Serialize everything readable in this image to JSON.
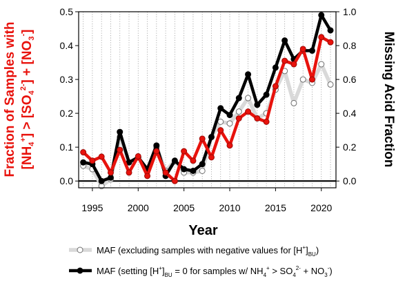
{
  "chart_data": {
    "type": "line",
    "x": [
      1994,
      1995,
      1996,
      1997,
      1998,
      1999,
      2000,
      2001,
      2002,
      2003,
      2004,
      2005,
      2006,
      2007,
      2008,
      2009,
      2010,
      2011,
      2012,
      2013,
      2014,
      2015,
      2016,
      2017,
      2018,
      2019,
      2020,
      2021
    ],
    "xlabel": "Year",
    "xticks": [
      1995,
      2000,
      2005,
      2010,
      2015,
      2020
    ],
    "xlim": [
      1993.5,
      2021.6
    ],
    "ylabel_left_parts": [
      "Fraction of Samples with",
      "[NH",
      "4",
      "+",
      "] > [SO",
      "4",
      "2-",
      "] + [NO",
      "3",
      "-",
      "]"
    ],
    "ylim_left": [
      -0.02,
      0.5
    ],
    "yticks_left": [
      "0.0",
      "0.1",
      "0.2",
      "0.3",
      "0.4",
      "0.5"
    ],
    "ylabel_right": "Missing Acid Fraction",
    "ylim_right": [
      -0.04,
      1.0
    ],
    "yticks_right": [
      "0.0",
      "0.2",
      "0.4",
      "0.6",
      "0.8",
      "1.0"
    ],
    "grid": "vertical dotted",
    "legend_position": "bottom",
    "series": [
      {
        "axis": "right",
        "color": "#d9d9d9",
        "marker": "open-circle",
        "values": [
          0.09,
          0.07,
          -0.03,
          0.01,
          0.26,
          0.11,
          0.14,
          0.06,
          0.2,
          0.06,
          0.12,
          0.05,
          0.05,
          0.06,
          0.26,
          0.35,
          0.34,
          0.41,
          0.49,
          0.37,
          0.4,
          0.54,
          0.65,
          0.46,
          0.6,
          0.58,
          0.69,
          0.57
        ],
        "legend_parts": [
          "MAF (excluding samples with negative values for [H",
          "+",
          "]",
          "BU",
          ")"
        ]
      },
      {
        "axis": "right",
        "color": "#000000",
        "marker": "filled-circle",
        "values": [
          0.11,
          0.1,
          0.0,
          0.02,
          0.29,
          0.11,
          0.14,
          0.07,
          0.21,
          0.03,
          0.12,
          0.07,
          0.06,
          0.1,
          0.26,
          0.43,
          0.39,
          0.49,
          0.63,
          0.45,
          0.51,
          0.67,
          0.83,
          0.72,
          0.77,
          0.77,
          0.98,
          0.89
        ],
        "legend_parts": [
          "MAF (setting [H",
          "+",
          "]",
          "BU",
          " =  0 for samples w/ NH",
          "4",
          "+",
          " > SO",
          "4",
          "2-",
          " + NO",
          "3",
          "-",
          ")"
        ]
      },
      {
        "axis": "left",
        "color": "#e8120c",
        "marker": "filled-circle",
        "values": [
          0.085,
          0.06,
          0.072,
          0.025,
          0.092,
          0.025,
          0.073,
          0.015,
          0.088,
          0.025,
          0.0,
          0.088,
          0.06,
          0.125,
          0.07,
          0.15,
          0.105,
          0.185,
          0.205,
          0.185,
          0.175,
          0.28,
          0.355,
          0.345,
          0.39,
          0.3,
          0.425,
          0.41
        ]
      }
    ]
  }
}
